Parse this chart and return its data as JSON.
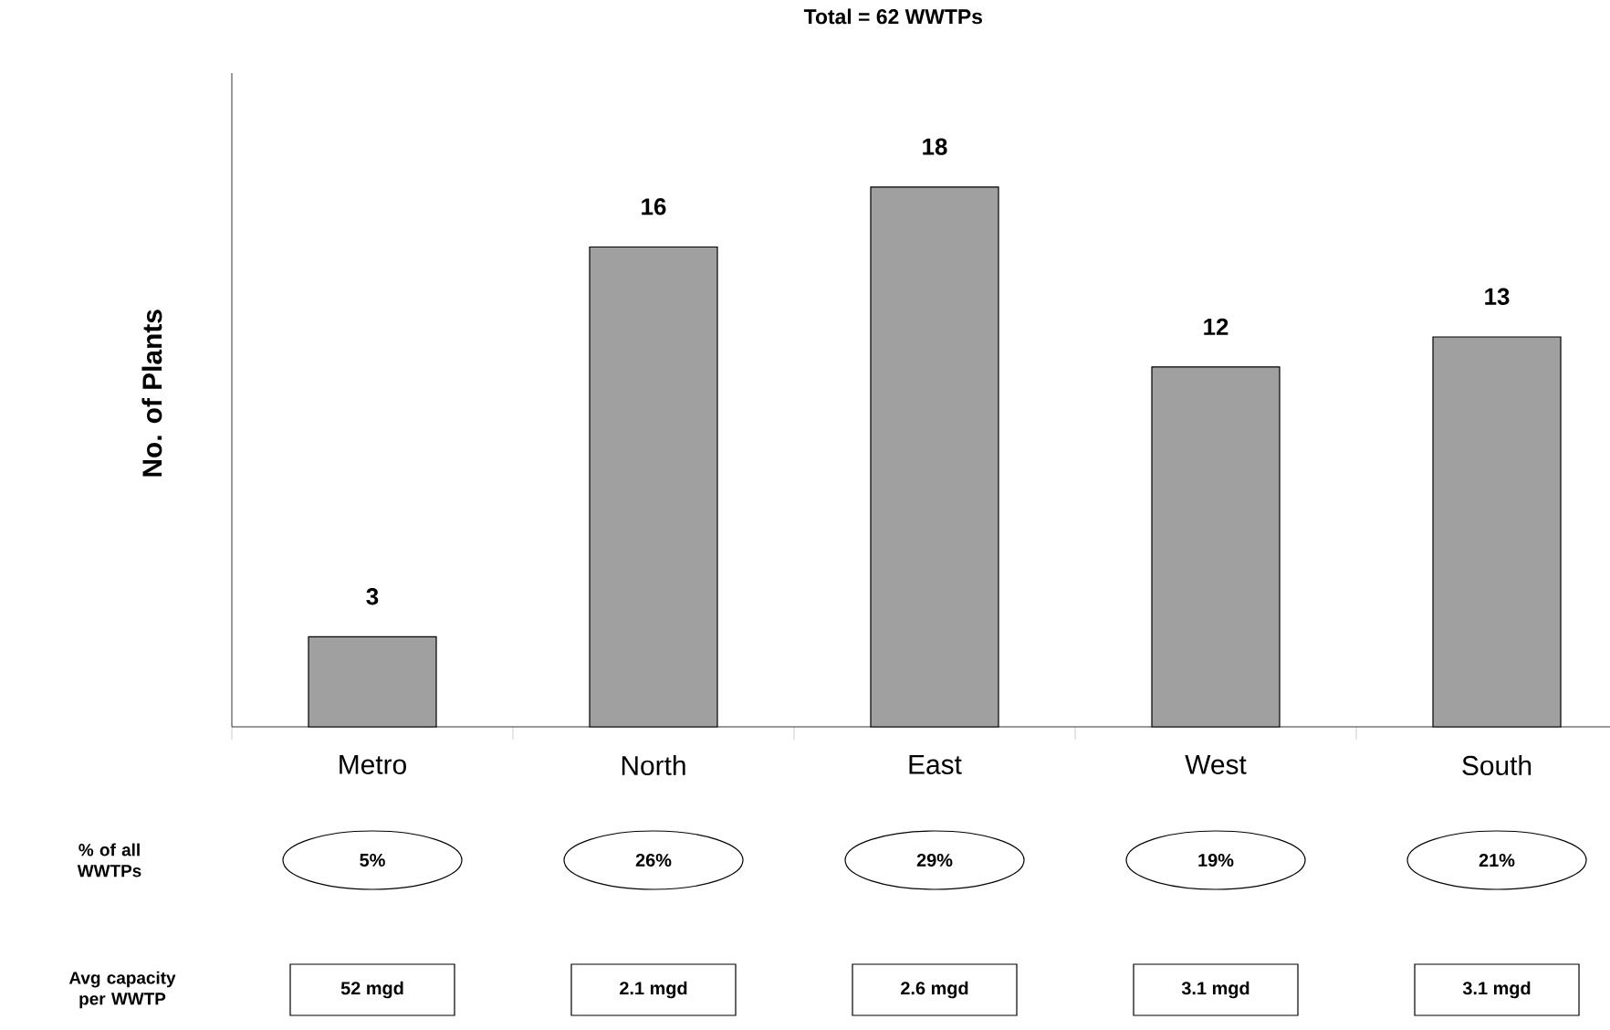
{
  "chart_data": {
    "type": "bar",
    "title": "Total = 62 WWTPs",
    "ylabel": "No. of Plants",
    "categories": [
      "Metro",
      "North",
      "East",
      "West",
      "South"
    ],
    "values": [
      3,
      16,
      18,
      12,
      13
    ],
    "color": "#a0a0a0",
    "ylim": [
      0,
      21.8
    ],
    "data_labels": true,
    "annotations": [
      "% of all WWTPs",
      "5%",
      "26%",
      "29%",
      "19%",
      "21%",
      "Avg capacity per WWTP",
      "52 mgd",
      "2.1 mgd",
      "2.6 mgd",
      "3.1 mgd",
      "3.1 mgd"
    ]
  }
}
